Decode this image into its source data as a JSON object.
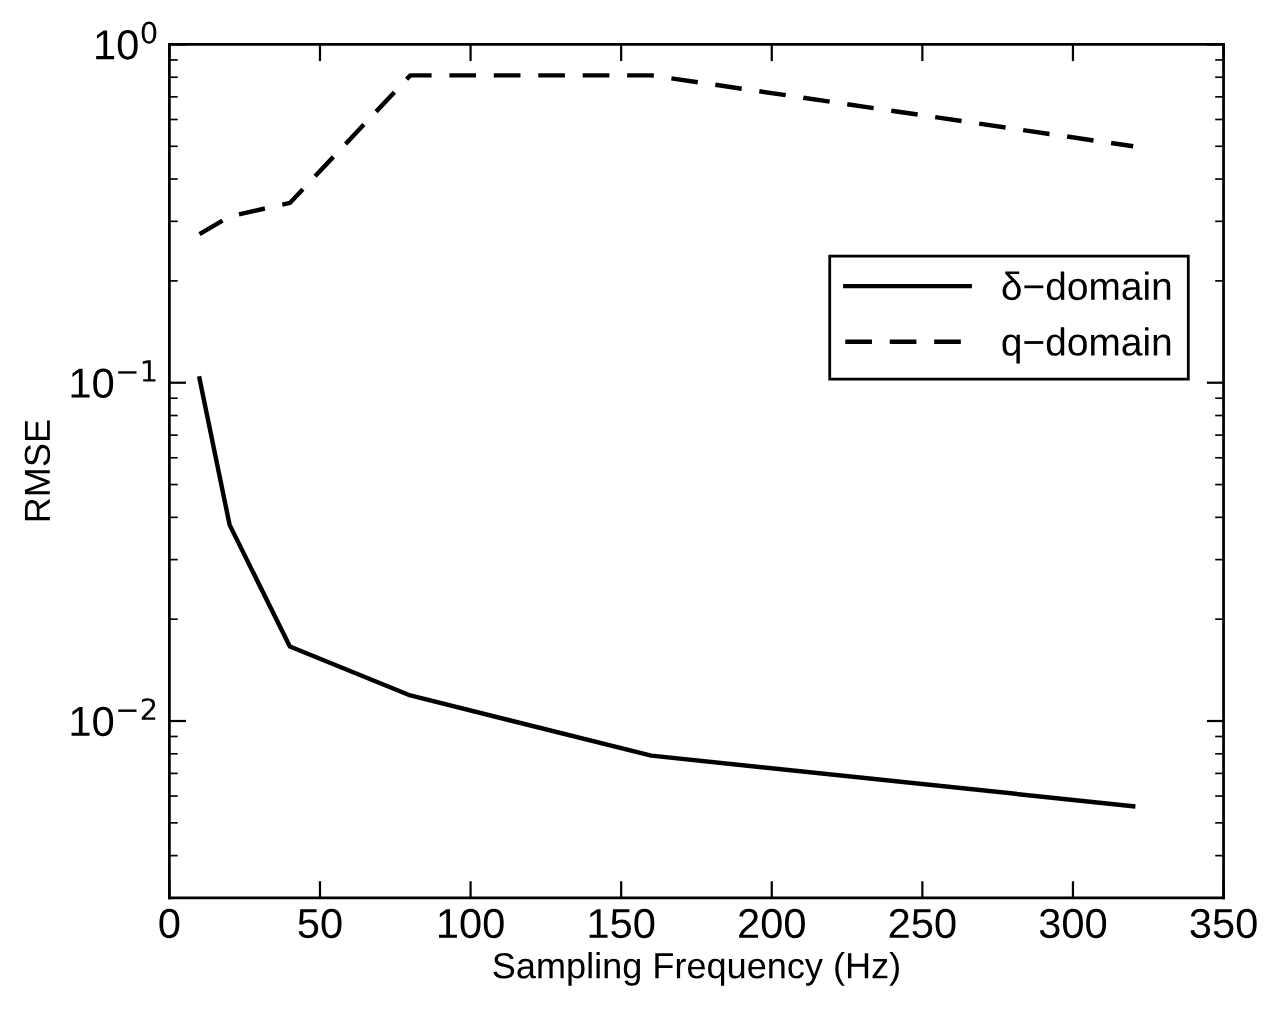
{
  "chart_data": {
    "type": "line",
    "xlabel": "Sampling Frequency (Hz)",
    "ylabel": "RMSE",
    "x": [
      10,
      20,
      40,
      80,
      160,
      320
    ],
    "series": [
      {
        "name": "δ−domain",
        "color": "#000000",
        "line_style": "solid",
        "values": [
          0.103,
          0.038,
          0.0166,
          0.0119,
          0.0079,
          0.0056
        ]
      },
      {
        "name": "q−domain",
        "color": "#000000",
        "line_style": "dashed",
        "values": [
          0.275,
          0.31,
          0.34,
          0.81,
          0.81,
          0.5
        ]
      }
    ],
    "log": "y",
    "xlim": [
      0,
      350
    ],
    "xticks": [
      0,
      50,
      100,
      150,
      200,
      250,
      300,
      350
    ],
    "ylim": [
      0.003,
      1
    ],
    "yticks": [
      {
        "value": 0.01,
        "label": "10$^{−2}$"
      },
      {
        "value": 0.1,
        "label": "10$^{−1}$"
      },
      {
        "value": 1,
        "label": "10$^{0}$"
      }
    ],
    "grid": false,
    "legend": "right",
    "marker": "none"
  }
}
